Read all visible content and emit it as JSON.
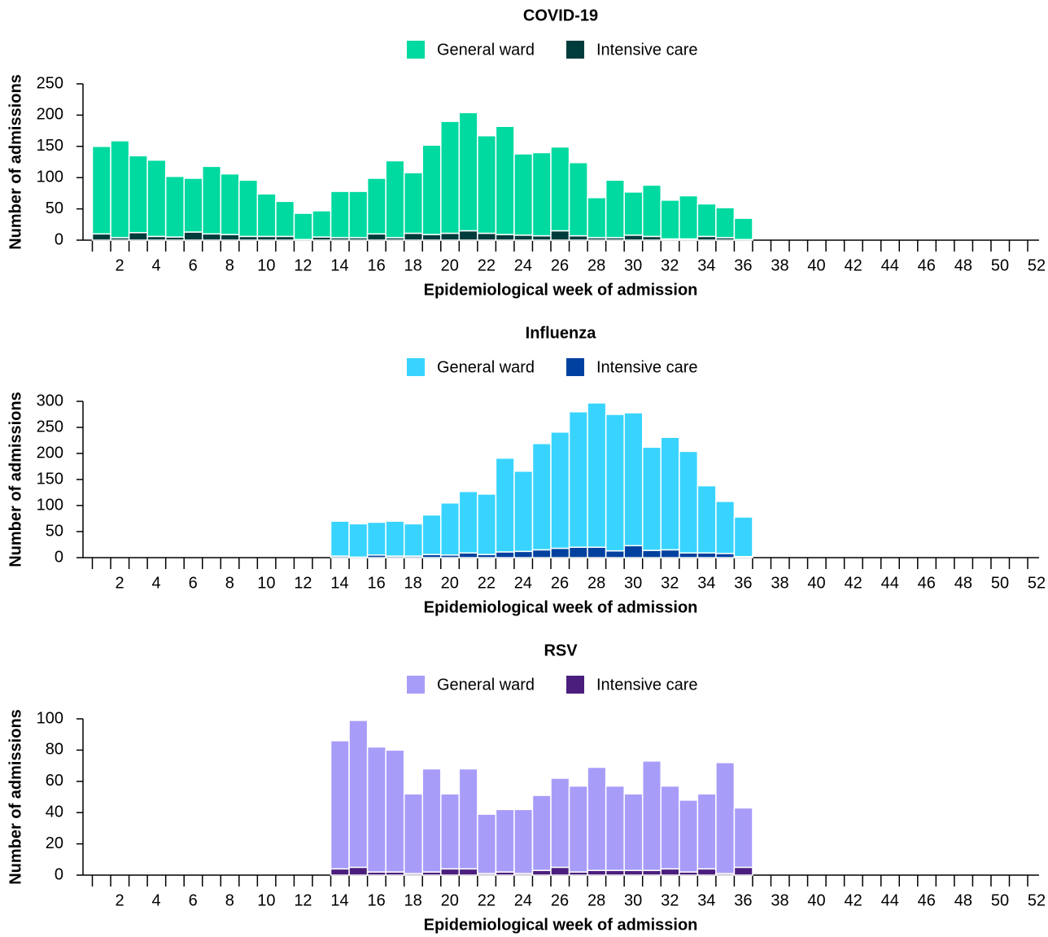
{
  "chart_data": [
    {
      "type": "bar",
      "stacked": true,
      "title": "COVID-19",
      "xlabel": "Epidemiological week of admission",
      "ylabel": "Number of admissions",
      "categories": [
        null,
        2,
        null,
        4,
        null,
        6,
        null,
        8,
        null,
        10,
        null,
        12,
        null,
        14,
        null,
        16,
        null,
        18,
        null,
        20,
        null,
        22,
        null,
        24,
        null,
        26,
        null,
        28,
        null,
        30,
        null,
        32,
        null,
        34,
        null,
        36,
        null,
        38,
        null,
        40,
        null,
        42,
        null,
        44,
        null,
        46,
        null,
        48,
        null,
        50,
        null,
        52
      ],
      "ylim": [
        0,
        250
      ],
      "yticks": [
        0,
        50,
        100,
        150,
        200,
        250
      ],
      "series": [
        {
          "name": "General ward",
          "color": "#00d9a0",
          "values": [
            140,
            155,
            123,
            122,
            97,
            86,
            108,
            97,
            90,
            68,
            56,
            42,
            42,
            74,
            74,
            89,
            123,
            97,
            143,
            179,
            189,
            156,
            173,
            130,
            133,
            134,
            117,
            64,
            92,
            69,
            82,
            62,
            69,
            52,
            48,
            34,
            null,
            null,
            null,
            null,
            null,
            null,
            null,
            null,
            null,
            null,
            null,
            null,
            null,
            null,
            null,
            null
          ]
        },
        {
          "name": "Intensive care",
          "color": "#003c3c",
          "values": [
            10,
            4,
            12,
            6,
            5,
            13,
            10,
            9,
            6,
            6,
            6,
            1,
            5,
            4,
            4,
            10,
            4,
            11,
            9,
            11,
            15,
            11,
            9,
            8,
            7,
            15,
            7,
            4,
            4,
            8,
            6,
            2,
            2,
            6,
            4,
            1,
            null,
            null,
            null,
            null,
            null,
            null,
            null,
            null,
            null,
            null,
            null,
            null,
            null,
            null,
            null,
            null
          ]
        }
      ]
    },
    {
      "type": "bar",
      "stacked": true,
      "title": "Influenza",
      "xlabel": "Epidemiological week of admission",
      "ylabel": "Number of admissions",
      "categories": [
        null,
        2,
        null,
        4,
        null,
        6,
        null,
        8,
        null,
        10,
        null,
        12,
        null,
        14,
        null,
        16,
        null,
        18,
        null,
        20,
        null,
        22,
        null,
        24,
        null,
        26,
        null,
        28,
        null,
        30,
        null,
        32,
        null,
        34,
        null,
        36,
        null,
        38,
        null,
        40,
        null,
        42,
        null,
        44,
        null,
        46,
        null,
        48,
        null,
        50,
        null,
        52
      ],
      "ylim": [
        0,
        300
      ],
      "yticks": [
        0,
        50,
        100,
        150,
        200,
        250,
        300
      ],
      "series": [
        {
          "name": "General ward",
          "color": "#38d4ff",
          "values": [
            null,
            null,
            null,
            null,
            null,
            null,
            null,
            null,
            null,
            null,
            null,
            null,
            null,
            67,
            64,
            63,
            67,
            62,
            76,
            100,
            118,
            116,
            180,
            154,
            204,
            223,
            260,
            277,
            262,
            255,
            198,
            216,
            195,
            129,
            100,
            76,
            null,
            null,
            null,
            null,
            null,
            null,
            null,
            null,
            null,
            null,
            null,
            null,
            null,
            null,
            null,
            null
          ]
        },
        {
          "name": "Intensive care",
          "color": "#0041a0",
          "values": [
            null,
            null,
            null,
            null,
            null,
            null,
            null,
            null,
            null,
            null,
            null,
            null,
            null,
            3,
            1,
            5,
            3,
            3,
            6,
            5,
            9,
            6,
            11,
            12,
            15,
            18,
            20,
            20,
            13,
            23,
            14,
            15,
            9,
            9,
            8,
            2,
            null,
            null,
            null,
            null,
            null,
            null,
            null,
            null,
            null,
            null,
            null,
            null,
            null,
            null,
            null,
            null
          ]
        }
      ]
    },
    {
      "type": "bar",
      "stacked": true,
      "title": "RSV",
      "xlabel": "Epidemiological week of admission",
      "ylabel": "Number of admissions",
      "categories": [
        null,
        2,
        null,
        4,
        null,
        6,
        null,
        8,
        null,
        10,
        null,
        12,
        null,
        14,
        null,
        16,
        null,
        18,
        null,
        20,
        null,
        22,
        null,
        24,
        null,
        26,
        null,
        28,
        null,
        30,
        null,
        32,
        null,
        34,
        null,
        36,
        null,
        38,
        null,
        40,
        null,
        42,
        null,
        44,
        null,
        46,
        null,
        48,
        null,
        50,
        null,
        52
      ],
      "ylim": [
        0,
        100
      ],
      "yticks": [
        0,
        20,
        40,
        60,
        80,
        100
      ],
      "series": [
        {
          "name": "General ward",
          "color": "#a89cf9",
          "values": [
            null,
            null,
            null,
            null,
            null,
            null,
            null,
            null,
            null,
            null,
            null,
            null,
            null,
            82,
            94,
            80,
            78,
            51,
            66,
            48,
            64,
            38,
            40,
            41,
            48,
            57,
            55,
            66,
            54,
            49,
            70,
            53,
            46,
            48,
            71,
            38,
            null,
            null,
            null,
            null,
            null,
            null,
            null,
            null,
            null,
            null,
            null,
            null,
            null,
            null,
            null,
            null
          ]
        },
        {
          "name": "Intensive care",
          "color": "#4b1e7e",
          "values": [
            null,
            null,
            null,
            null,
            null,
            null,
            null,
            null,
            null,
            null,
            null,
            null,
            null,
            4,
            5,
            2,
            2,
            1,
            2,
            4,
            4,
            1,
            2,
            1,
            3,
            5,
            2,
            3,
            3,
            3,
            3,
            4,
            2,
            4,
            1,
            5,
            null,
            null,
            null,
            null,
            null,
            null,
            null,
            null,
            null,
            null,
            null,
            null,
            null,
            null,
            null,
            null
          ]
        }
      ]
    }
  ]
}
